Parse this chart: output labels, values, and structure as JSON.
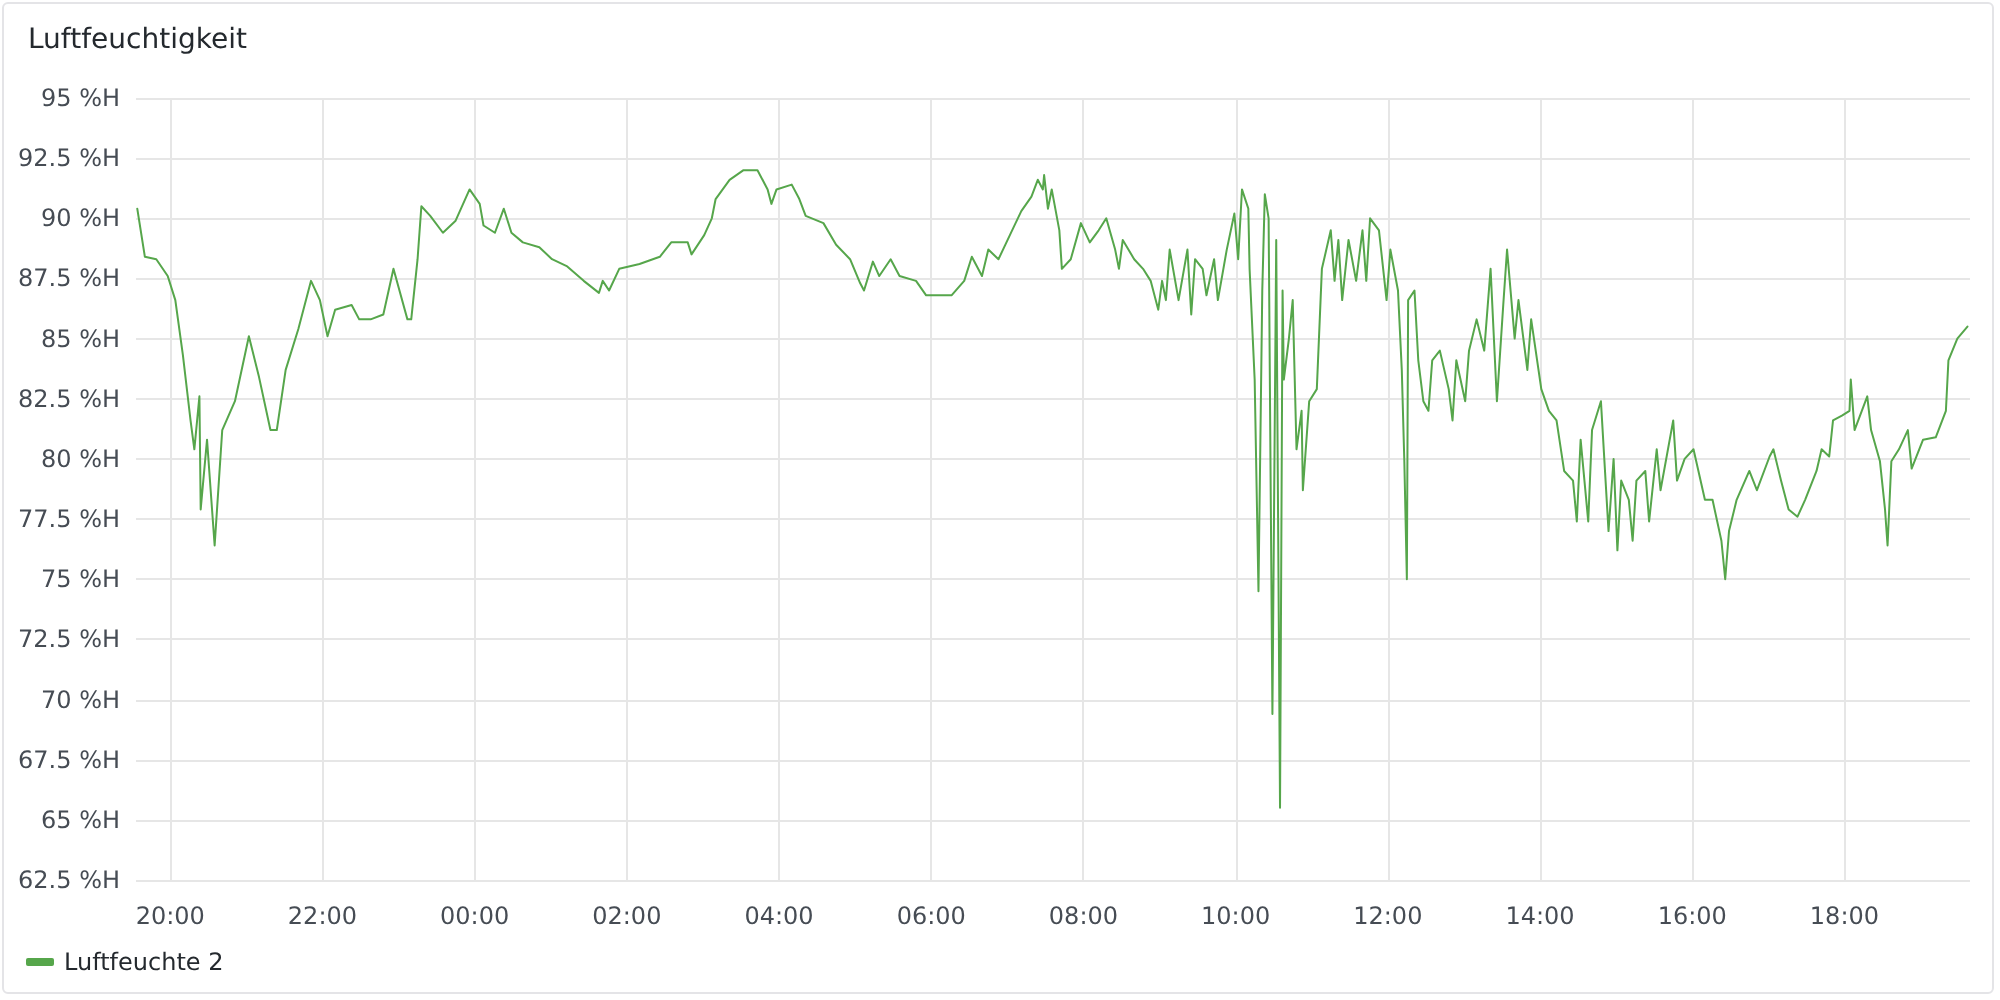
{
  "chart_data": {
    "type": "line",
    "title": "Luftfeuchtigkeit",
    "xlim": [
      "--01-01T19:33",
      "--01-02T19:39"
    ],
    "xticks": [
      {
        "value": "--01-01T20:00",
        "label": "20:00"
      },
      {
        "value": "--01-01T22:00",
        "label": "22:00"
      },
      {
        "value": "--01-02T00:00",
        "label": "00:00"
      },
      {
        "value": "--01-02T02:00",
        "label": "02:00"
      },
      {
        "value": "--01-02T04:00",
        "label": "04:00"
      },
      {
        "value": "--01-02T06:00",
        "label": "06:00"
      },
      {
        "value": "--01-02T08:00",
        "label": "08:00"
      },
      {
        "value": "--01-02T10:00",
        "label": "10:00"
      },
      {
        "value": "--01-02T12:00",
        "label": "12:00"
      },
      {
        "value": "--01-02T14:00",
        "label": "14:00"
      },
      {
        "value": "--01-02T16:00",
        "label": "16:00"
      },
      {
        "value": "--01-02T18:00",
        "label": "18:00"
      }
    ],
    "ylim": [
      62.5,
      95
    ],
    "yticks": [
      {
        "value": 62.5,
        "label": "62.5 %H"
      },
      {
        "value": 65,
        "label": "65 %H"
      },
      {
        "value": 67.5,
        "label": "67.5 %H"
      },
      {
        "value": 70,
        "label": "70 %H"
      },
      {
        "value": 72.5,
        "label": "72.5 %H"
      },
      {
        "value": 75,
        "label": "75 %H"
      },
      {
        "value": 77.5,
        "label": "77.5 %H"
      },
      {
        "value": 80,
        "label": "80 %H"
      },
      {
        "value": 82.5,
        "label": "82.5 %H"
      },
      {
        "value": 85,
        "label": "85 %H"
      },
      {
        "value": 87.5,
        "label": "87.5 %H"
      },
      {
        "value": 90,
        "label": "90 %H"
      },
      {
        "value": 92.5,
        "label": "92.5 %H"
      },
      {
        "value": 95,
        "label": "95 %H"
      }
    ],
    "grid": true,
    "legend": "bottom left",
    "marker": "none",
    "line_style": "solid",
    "series": [
      {
        "name": "Luftfeuchte 2",
        "color": "#56a64b",
        "x": [
          "--01-01T19:34",
          "--01-01T19:40",
          "--01-01T19:49",
          "--01-01T19:58",
          "--01-01T20:04",
          "--01-01T20:10",
          "--01-01T20:16",
          "--01-01T20:19",
          "--01-01T20:23",
          "--01-01T20:24",
          "--01-01T20:29",
          "--01-01T20:35",
          "--01-01T20:41",
          "--01-01T20:51",
          "--01-01T21:02",
          "--01-01T21:10",
          "--01-01T21:19",
          "--01-01T21:24",
          "--01-01T21:31",
          "--01-01T21:41",
          "--01-01T21:51",
          "--01-01T21:58",
          "--01-01T22:04",
          "--01-01T22:10",
          "--01-01T22:23",
          "--01-01T22:29",
          "--01-01T22:38",
          "--01-01T22:48",
          "--01-01T22:56",
          "--01-01T23:07",
          "--01-01T23:10",
          "--01-01T23:15",
          "--01-01T23:18",
          "--01-01T23:25",
          "--01-01T23:35",
          "--01-01T23:45",
          "--01-01T23:56",
          "--01-02T00:04",
          "--01-02T00:07",
          "--01-02T00:16",
          "--01-02T00:23",
          "--01-02T00:29",
          "--01-02T00:38",
          "--01-02T00:51",
          "--01-02T01:01",
          "--01-02T01:13",
          "--01-02T01:26",
          "--01-02T01:38",
          "--01-02T01:41",
          "--01-02T01:46",
          "--01-02T01:54",
          "--01-02T02:10",
          "--01-02T02:26",
          "--01-02T02:35",
          "--01-02T02:48",
          "--01-02T02:51",
          "--01-02T03:01",
          "--01-02T03:07",
          "--01-02T03:10",
          "--01-02T03:21",
          "--01-02T03:32",
          "--01-02T03:43",
          "--01-02T03:51",
          "--01-02T03:54",
          "--01-02T03:58",
          "--01-02T04:10",
          "--01-02T04:16",
          "--01-02T04:21",
          "--01-02T04:35",
          "--01-02T04:45",
          "--01-02T04:56",
          "--01-02T05:04",
          "--01-02T05:07",
          "--01-02T05:14",
          "--01-02T05:19",
          "--01-02T05:28",
          "--01-02T05:35",
          "--01-02T05:48",
          "--01-02T05:56",
          "--01-02T06:07",
          "--01-02T06:16",
          "--01-02T06:26",
          "--01-02T06:32",
          "--01-02T06:40",
          "--01-02T06:45",
          "--01-02T06:53",
          "--01-02T07:02",
          "--01-02T07:11",
          "--01-02T07:19",
          "--01-02T07:24",
          "--01-02T07:28",
          "--01-02T07:29",
          "--01-02T07:32",
          "--01-02T07:35",
          "--01-02T07:41",
          "--01-02T07:43",
          "--01-02T07:50",
          "--01-02T07:58",
          "--01-02T08:05",
          "--01-02T08:12",
          "--01-02T08:18",
          "--01-02T08:25",
          "--01-02T08:28",
          "--01-02T08:31",
          "--01-02T08:40",
          "--01-02T08:47",
          "--01-02T08:53",
          "--01-02T08:59",
          "--01-02T09:02",
          "--01-02T09:05",
          "--01-02T09:08",
          "--01-02T09:15",
          "--01-02T09:22",
          "--01-02T09:25",
          "--01-02T09:28",
          "--01-02T09:34",
          "--01-02T09:37",
          "--01-02T09:43",
          "--01-02T09:46",
          "--01-02T09:53",
          "--01-02T09:59",
          "--01-02T10:02",
          "--01-02T10:05",
          "--01-02T10:10",
          "--01-02T10:11",
          "--01-02T10:15",
          "--01-02T10:18",
          "--01-02T10:21",
          "--01-02T10:23",
          "--01-02T10:26",
          "--01-02T10:29",
          "--01-02T10:32",
          "--01-02T10:35",
          "--01-02T10:37",
          "--01-02T10:38",
          "--01-02T10:42",
          "--01-02T10:45",
          "--01-02T10:48",
          "--01-02T10:52",
          "--01-02T10:53",
          "--01-02T10:58",
          "--01-02T11:04",
          "--01-02T11:08",
          "--01-02T11:15",
          "--01-02T11:18",
          "--01-02T11:21",
          "--01-02T11:24",
          "--01-02T11:29",
          "--01-02T11:35",
          "--01-02T11:40",
          "--01-02T11:43",
          "--01-02T11:46",
          "--01-02T11:53",
          "--01-02T11:59",
          "--01-02T12:02",
          "--01-02T12:08",
          "--01-02T12:11",
          "--01-02T12:13",
          "--01-02T12:15",
          "--01-02T12:16",
          "--01-02T12:21",
          "--01-02T12:24",
          "--01-02T12:28",
          "--01-02T12:32",
          "--01-02T12:35",
          "--01-02T12:41",
          "--01-02T12:48",
          "--01-02T12:51",
          "--01-02T12:54",
          "--01-02T13:01",
          "--01-02T13:04",
          "--01-02T13:10",
          "--01-02T13:16",
          "--01-02T13:21",
          "--01-02T13:26",
          "--01-02T13:31",
          "--01-02T13:34",
          "--01-02T13:40",
          "--01-02T13:43",
          "--01-02T13:50",
          "--01-02T13:53",
          "--01-02T14:01",
          "--01-02T14:07",
          "--01-02T14:13",
          "--01-02T14:19",
          "--01-02T14:26",
          "--01-02T14:29",
          "--01-02T14:32",
          "--01-02T14:38",
          "--01-02T14:41",
          "--01-02T14:48",
          "--01-02T14:54",
          "--01-02T14:58",
          "--01-02T15:01",
          "--01-02T15:04",
          "--01-02T15:10",
          "--01-02T15:13",
          "--01-02T15:16",
          "--01-02T15:23",
          "--01-02T15:26",
          "--01-02T15:32",
          "--01-02T15:35",
          "--01-02T15:45",
          "--01-02T15:48",
          "--01-02T15:54",
          "--01-02T16:01",
          "--01-02T16:10",
          "--01-02T16:16",
          "--01-02T16:23",
          "--01-02T16:26",
          "--01-02T16:29",
          "--01-02T16:35",
          "--01-02T16:45",
          "--01-02T16:51",
          "--01-02T17:01",
          "--01-02T17:04",
          "--01-02T17:10",
          "--01-02T17:16",
          "--01-02T17:23",
          "--01-02T17:29",
          "--01-02T17:38",
          "--01-02T17:42",
          "--01-02T17:48",
          "--01-02T17:51",
          "--01-02T17:58",
          "--01-02T18:04",
          "--01-02T18:05",
          "--01-02T18:08",
          "--01-02T18:18",
          "--01-02T18:21",
          "--01-02T18:28",
          "--01-02T18:32",
          "--01-02T18:34",
          "--01-02T18:37",
          "--01-02T18:43",
          "--01-02T18:50",
          "--01-02T18:53",
          "--01-02T19:02",
          "--01-02T19:12",
          "--01-02T19:20",
          "--01-02T19:22",
          "--01-02T19:29",
          "--01-02T19:37"
        ],
        "values": [
          90.4,
          88.4,
          88.3,
          87.6,
          86.6,
          84.3,
          81.6,
          80.4,
          82.6,
          77.9,
          80.8,
          76.4,
          81.2,
          82.4,
          85.1,
          83.4,
          81.2,
          81.2,
          83.7,
          85.4,
          87.4,
          86.6,
          85.1,
          86.2,
          86.4,
          85.8,
          85.8,
          86.0,
          87.9,
          85.8,
          85.8,
          88.3,
          90.5,
          90.1,
          89.4,
          89.9,
          91.2,
          90.6,
          89.7,
          89.4,
          90.4,
          89.4,
          89.0,
          88.8,
          88.3,
          88.0,
          87.4,
          86.9,
          87.4,
          87.0,
          87.9,
          88.1,
          88.4,
          89.0,
          89.0,
          88.5,
          89.3,
          90.0,
          90.8,
          91.6,
          92.0,
          92.0,
          91.2,
          90.6,
          91.2,
          91.4,
          90.8,
          90.1,
          89.8,
          88.9,
          88.3,
          87.3,
          87.0,
          88.2,
          87.6,
          88.3,
          87.6,
          87.4,
          86.8,
          86.8,
          86.8,
          87.4,
          88.4,
          87.6,
          88.7,
          88.3,
          89.3,
          90.3,
          90.9,
          91.6,
          91.2,
          91.8,
          90.4,
          91.2,
          89.5,
          87.9,
          88.3,
          89.8,
          89.0,
          89.5,
          90.0,
          88.7,
          87.9,
          89.1,
          88.3,
          87.9,
          87.4,
          86.2,
          87.4,
          86.6,
          88.7,
          86.6,
          88.7,
          86.0,
          88.3,
          87.9,
          86.8,
          88.3,
          86.6,
          88.7,
          90.2,
          88.3,
          91.2,
          90.4,
          87.9,
          83.3,
          74.5,
          87.0,
          91.0,
          90.0,
          69.4,
          89.1,
          65.5,
          87.0,
          83.3,
          85.0,
          86.6,
          80.4,
          82.0,
          78.7,
          82.4,
          82.9,
          87.9,
          89.5,
          87.4,
          89.1,
          86.6,
          89.1,
          87.4,
          89.5,
          87.4,
          90.0,
          89.5,
          86.6,
          88.7,
          87.0,
          83.7,
          79.9,
          75.0,
          86.6,
          87.0,
          84.1,
          82.4,
          82.0,
          84.1,
          84.5,
          82.9,
          81.6,
          84.1,
          82.4,
          84.5,
          85.8,
          84.5,
          87.9,
          82.4,
          86.4,
          88.7,
          85.0,
          86.6,
          83.7,
          85.8,
          82.9,
          82.0,
          81.6,
          79.5,
          79.1,
          77.4,
          80.8,
          77.4,
          81.2,
          82.4,
          77.0,
          80.0,
          76.2,
          79.1,
          78.3,
          76.6,
          79.1,
          79.5,
          77.4,
          80.4,
          78.7,
          81.6,
          79.1,
          80.0,
          80.4,
          78.3,
          78.3,
          76.6,
          75.0,
          77.0,
          78.3,
          79.5,
          78.7,
          80.1,
          80.4,
          79.1,
          77.9,
          77.6,
          78.3,
          79.5,
          80.4,
          80.1,
          81.6,
          81.8,
          82.0,
          83.3,
          81.2,
          82.6,
          81.2,
          79.9,
          77.9,
          76.4,
          79.9,
          80.4,
          81.2,
          79.6,
          80.8,
          80.9,
          82.0,
          84.1,
          85.0,
          85.5
        ]
      }
    ]
  }
}
